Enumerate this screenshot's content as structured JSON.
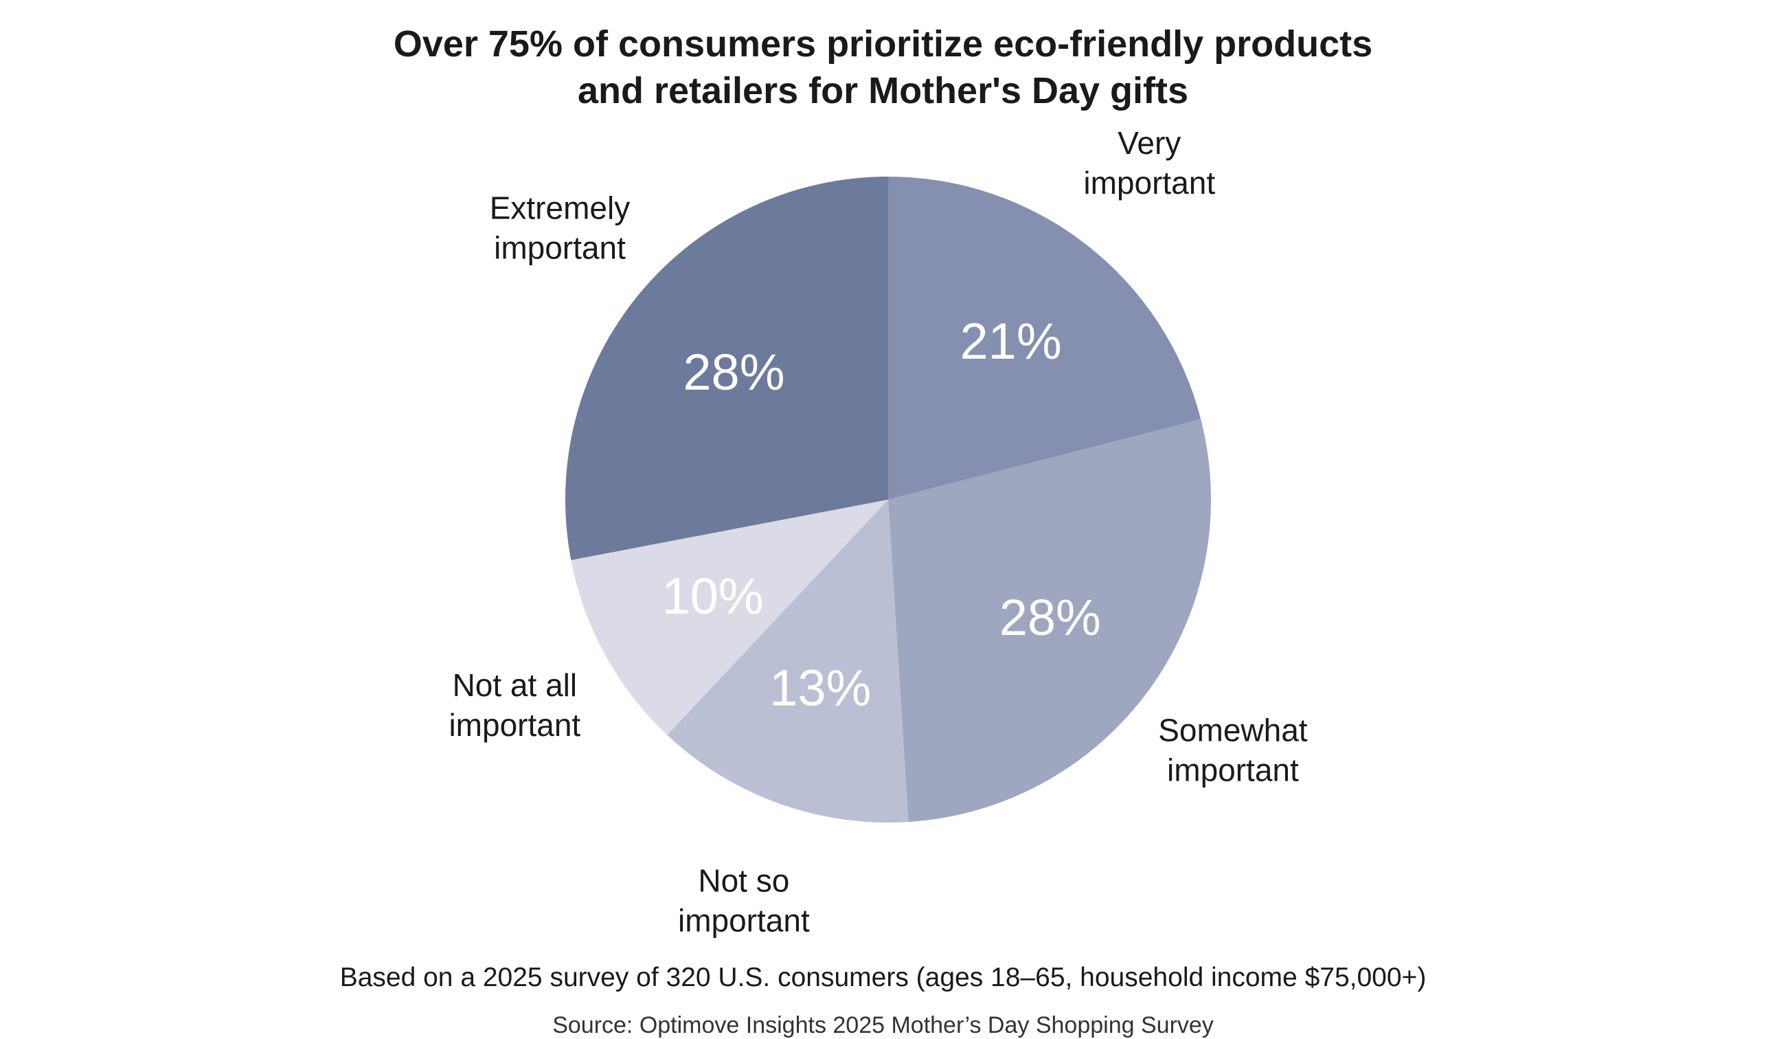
{
  "chart_data": {
    "type": "pie",
    "title": "Over 75% of consumers prioritize eco-friendly products and retailers for Mother's Day gifts",
    "title_lines": [
      "Over 75% of consumers prioritize eco-friendly products",
      "and retailers for Mother's Day gifts"
    ],
    "slices": [
      {
        "label_lines": [
          "Very",
          "important"
        ],
        "label": "Very important",
        "value": 21,
        "value_label": "21%",
        "color": "#858faf",
        "text_color": "#ffffff"
      },
      {
        "label_lines": [
          "Somewhat",
          "important"
        ],
        "label": "Somewhat important",
        "value": 28,
        "value_label": "28%",
        "color": "#9fa6c0",
        "text_color": "#ffffff"
      },
      {
        "label_lines": [
          "Not so",
          "important"
        ],
        "label": "Not so important",
        "value": 13,
        "value_label": "13%",
        "color": "#bbbfd3",
        "text_color": "#ffffff"
      },
      {
        "label_lines": [
          "Not at all",
          "important"
        ],
        "label": "Not at all important",
        "value": 10,
        "value_label": "10%",
        "color": "#dadbe7",
        "text_color": "#ffffff"
      },
      {
        "label_lines": [
          "Extremely",
          "important"
        ],
        "label": "Extremely important",
        "value": 28,
        "value_label": "28%",
        "color": "#6c7a9b",
        "text_color": "#ffffff"
      }
    ]
  },
  "footnote": "Based on a 2025 survey of 320 U.S. consumers (ages 18–65, household income $75,000+)",
  "source": "Source: Optimove Insights 2025 Mother’s Day Shopping Survey"
}
